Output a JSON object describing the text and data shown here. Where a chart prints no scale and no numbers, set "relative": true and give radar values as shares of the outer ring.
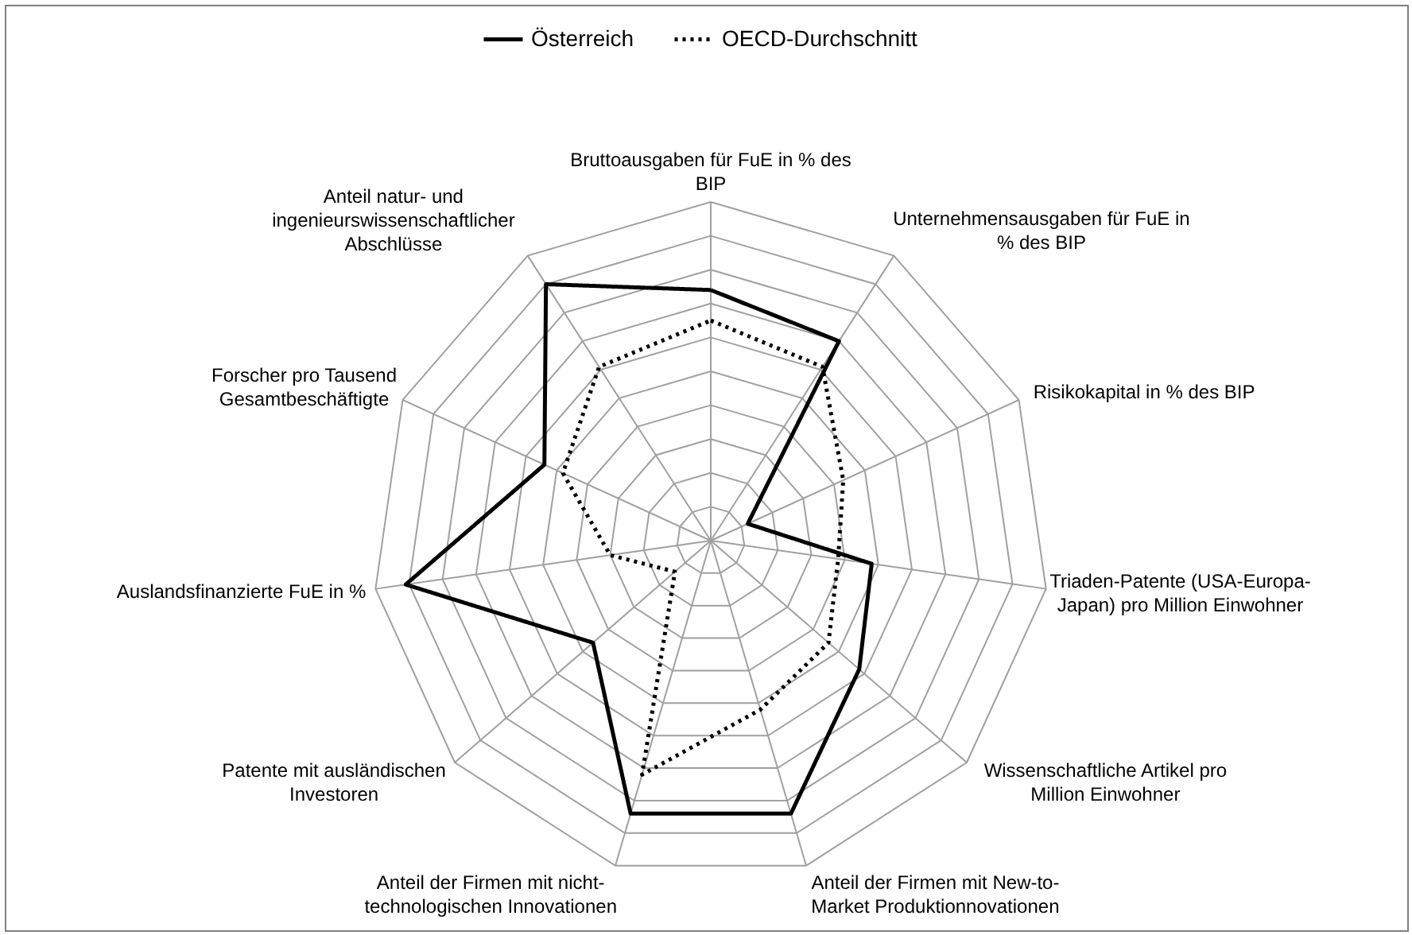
{
  "chart_data": {
    "type": "radar",
    "relative": true,
    "legend": "top",
    "grid": true,
    "categories": [
      "Bruttoausgaben für FuE in % des BIP",
      "Unternehmensausgaben für FuE in % des BIP",
      "Risikokapital in % des BIP",
      "Triaden-Patente (USA-Europa-Japan) pro Million Einwohner",
      "Wissenschaftliche Artikel pro Million Einwohner",
      "Anteil der Firmen mit New-to-Market Produktionnovationen",
      "Anteil der Firmen mit nicht-technologischen Innovationen",
      "Patente mit ausländischen Investoren",
      "Auslandsfinanzierte FuE in %",
      "Forscher pro Tausend Gesamtbeschäftigte",
      "Anteil natur- und ingenieurswissenschaftlicher Abschlüsse"
    ],
    "series": [
      {
        "name": "Österreich",
        "color": "#000000",
        "line_style": "solid",
        "values": [
          0.74,
          0.7,
          0.12,
          0.48,
          0.58,
          0.84,
          0.84,
          0.46,
          0.91,
          0.54,
          0.9
        ]
      },
      {
        "name": "OECD-Durchschnitt",
        "color": "#000000",
        "line_style": "dotted",
        "values": [
          0.65,
          0.61,
          0.43,
          0.38,
          0.46,
          0.52,
          0.72,
          0.14,
          0.3,
          0.48,
          0.61
        ]
      }
    ]
  }
}
